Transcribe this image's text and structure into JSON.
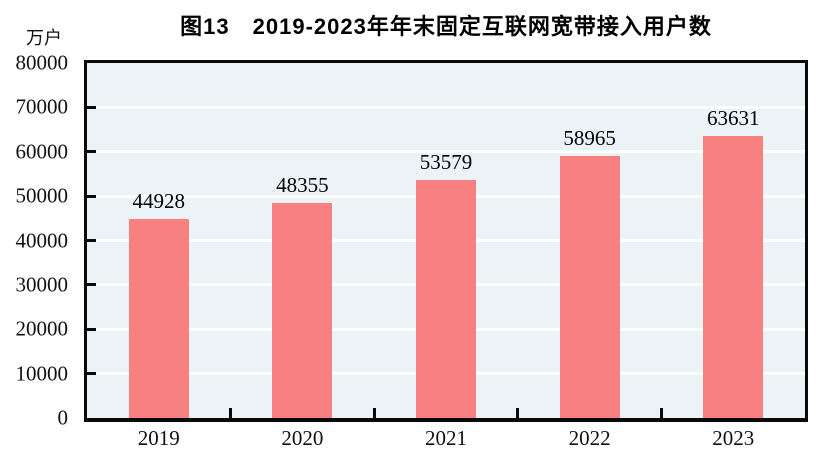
{
  "title": "图13　2019-2023年年末固定互联网宽带接入用户数",
  "unit_label": "万户",
  "chart_data": {
    "type": "bar",
    "title": "图13　2019-2023年年末固定互联网宽带接入用户数",
    "ylabel_unit": "万户",
    "categories": [
      "2019",
      "2020",
      "2021",
      "2022",
      "2023"
    ],
    "values": [
      44928,
      48355,
      53579,
      58965,
      63631
    ],
    "data_labels": [
      "44928",
      "48355",
      "53579",
      "58965",
      "63631"
    ],
    "ylim": [
      0,
      80000
    ],
    "yticks": [
      0,
      10000,
      20000,
      30000,
      40000,
      50000,
      60000,
      70000,
      80000
    ],
    "grid": true,
    "legend_position": "none",
    "colors": {
      "bar": "#f98080",
      "plot_background": "#ecf3f7",
      "gridline": "#ffffff",
      "frame": "#0a0a0a",
      "text": "#111111"
    }
  }
}
